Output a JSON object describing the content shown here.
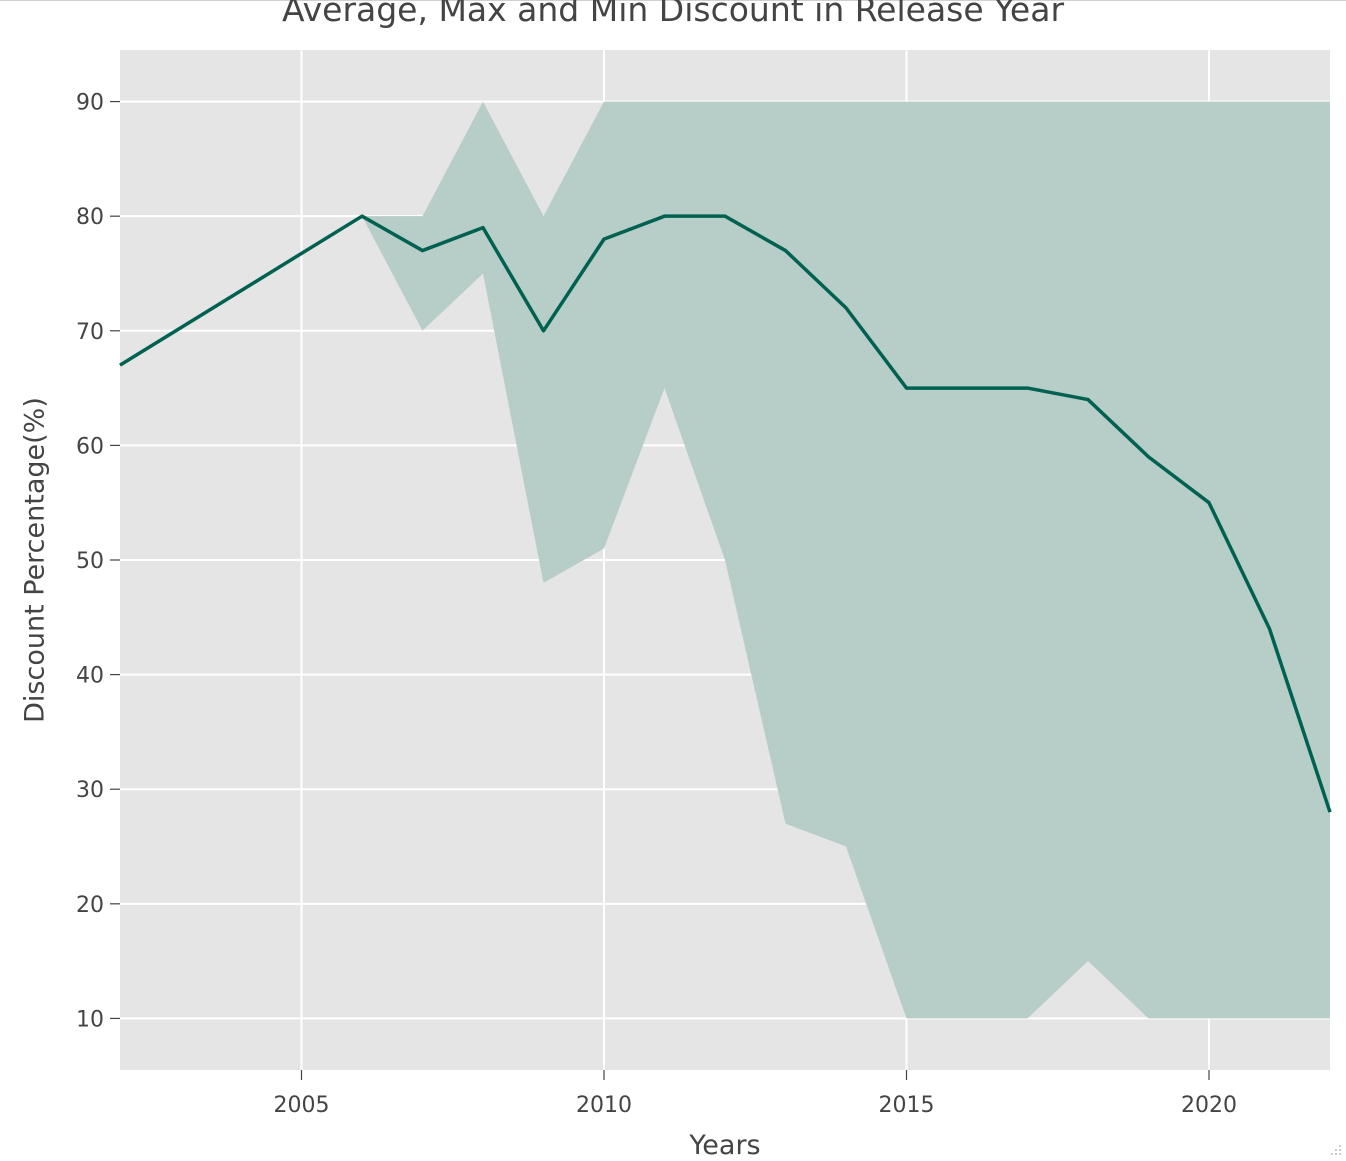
{
  "chart_data": {
    "type": "area",
    "title": "Average, Max and Min Discount in Release Year",
    "xlabel": "Years",
    "ylabel": "Discount Percentage(%)",
    "xlim": [
      2002,
      2022
    ],
    "ylim": [
      5.5,
      94.5
    ],
    "x_ticks": [
      2005,
      2010,
      2015,
      2020
    ],
    "y_ticks": [
      10,
      20,
      30,
      40,
      50,
      60,
      70,
      80,
      90
    ],
    "grid": true,
    "legend": "none",
    "x": [
      2002,
      2006,
      2007,
      2008,
      2009,
      2010,
      2011,
      2012,
      2013,
      2014,
      2015,
      2016,
      2017,
      2018,
      2019,
      2020,
      2021,
      2022
    ],
    "series": [
      {
        "role": "max",
        "values": [
          67,
          80,
          80,
          90,
          80,
          90,
          90,
          90,
          90,
          90,
          90,
          90,
          90,
          90,
          90,
          90,
          90,
          90
        ]
      },
      {
        "role": "min",
        "values": [
          67,
          80,
          70,
          75,
          48,
          51,
          65,
          50,
          27,
          25,
          10,
          10,
          10,
          15,
          10,
          10,
          10,
          10
        ]
      },
      {
        "role": "average",
        "values": [
          67,
          80,
          77,
          79,
          70,
          78,
          80,
          80,
          77,
          72,
          65,
          65,
          65,
          64,
          59,
          55,
          44,
          28
        ]
      }
    ],
    "colors": {
      "line": "#006150",
      "band": "#b7cdc8",
      "plot_bg": "#e5e5e5",
      "grid": "#ffffff",
      "text": "#444444"
    }
  }
}
